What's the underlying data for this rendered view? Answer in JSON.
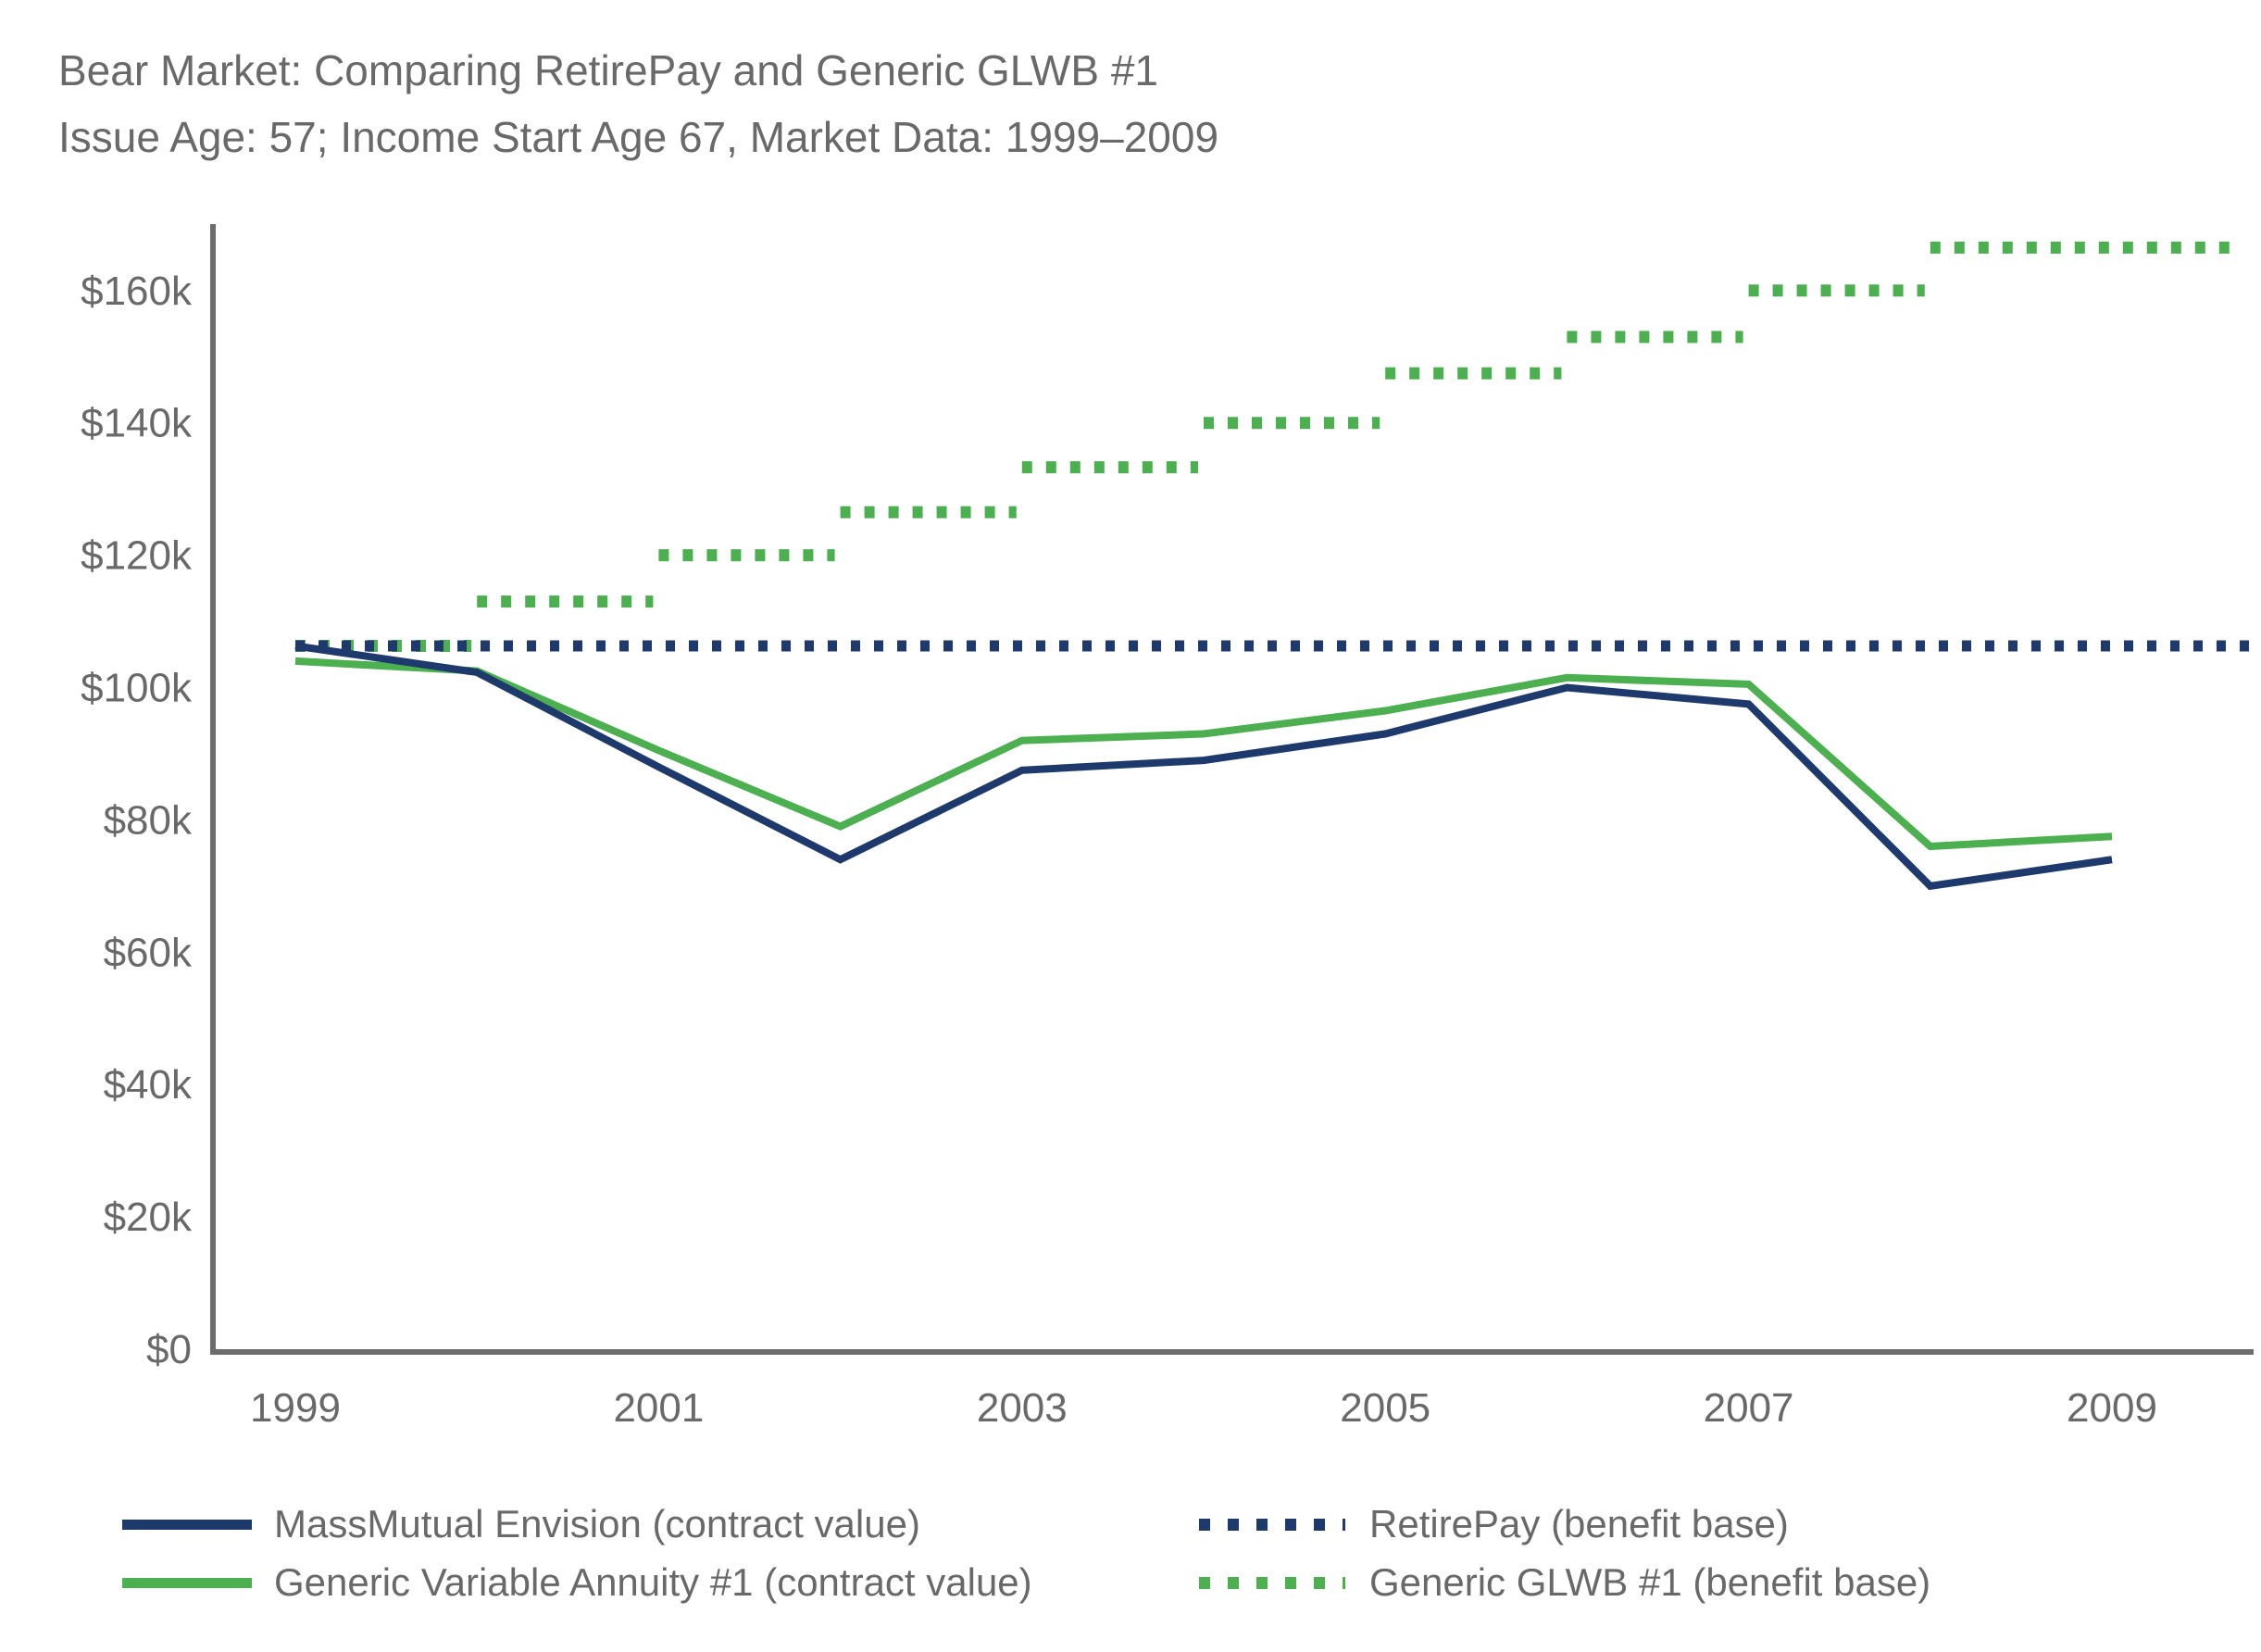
{
  "figure": {
    "title": "Bear Market: Comparing RetirePay and Generic GLWB #1",
    "subtitle": "Issue Age: 57; Income Start Age 67, Market Data: 1999–2009"
  },
  "colors": {
    "navy": "#1e3a6d",
    "green": "#4caf50",
    "axis": "#6d6d6d",
    "text": "#696969"
  },
  "legend": {
    "items": [
      {
        "label": "MassMutual Envision (contract value)",
        "swatch": "navy-solid"
      },
      {
        "label": "Generic Variable Annuity #1 (contract value)",
        "swatch": "green-solid"
      },
      {
        "label": "RetirePay (benefit base)",
        "swatch": "navy-dot"
      },
      {
        "label": "Generic GLWB #1 (benefit base)",
        "swatch": "green-dot"
      }
    ]
  },
  "chart_data": {
    "type": "line",
    "title": "Bear Market: Comparing RetirePay and Generic GLWB #1",
    "subtitle": "Issue Age: 57; Income Start Age 67, Market Data: 1999–2009",
    "xlabel": "",
    "ylabel": "",
    "grid": false,
    "legend_position": "bottom",
    "units": "USD thousands",
    "xlim": [
      1998.55,
      2009.8
    ],
    "ylim": [
      0,
      170
    ],
    "x_ticks": [
      1999,
      2001,
      2003,
      2005,
      2007,
      2009
    ],
    "x_tick_labels": [
      "1999",
      "2001",
      "2003",
      "2005",
      "2007",
      "2009"
    ],
    "y_ticks": [
      {
        "label": "$0",
        "value": 0
      },
      {
        "label": "$20k",
        "value": 20
      },
      {
        "label": "$40k",
        "value": 40
      },
      {
        "label": "$60k",
        "value": 60
      },
      {
        "label": "$80k",
        "value": 80
      },
      {
        "label": "$100k",
        "value": 100
      },
      {
        "label": "$120k",
        "value": 120
      },
      {
        "label": "$140k",
        "value": 140
      },
      {
        "label": "$160k",
        "value": 160
      }
    ],
    "years": [
      1999,
      2000,
      2001,
      2002,
      2003,
      2004,
      2005,
      2006,
      2007,
      2008,
      2009
    ],
    "series": [
      {
        "name": "Generic GLWB #1 (benefit base)",
        "render": "dotted-steps",
        "color": "#4caf50",
        "steps": [
          [
            1999,
            2000,
            106.3
          ],
          [
            2000,
            2001,
            113
          ],
          [
            2001,
            2002,
            120
          ],
          [
            2002,
            2003,
            126.5
          ],
          [
            2003,
            2004,
            133.3
          ],
          [
            2004,
            2005,
            140
          ],
          [
            2005,
            2006,
            147.5
          ],
          [
            2006,
            2007,
            153
          ],
          [
            2007,
            2008,
            160
          ],
          [
            2008,
            2009.75,
            166.5
          ]
        ]
      },
      {
        "name": "RetirePay (benefit base)",
        "render": "dotted-flat",
        "color": "#1e3a6d",
        "value": 106.3,
        "from": 1999,
        "to": 2009.75
      },
      {
        "name": "Generic Variable Annuity #1 (contract value)",
        "render": "solid",
        "color": "#4caf50",
        "values": [
          104,
          102.5,
          90.5,
          79,
          92,
          93,
          96.5,
          101.5,
          100.5,
          76,
          77.5
        ]
      },
      {
        "name": "MassMutual Envision (contract value)",
        "render": "solid",
        "color": "#1e3a6d",
        "values": [
          106.3,
          102.3,
          88,
          74,
          87.5,
          89,
          93,
          100,
          97.5,
          70,
          74
        ]
      }
    ]
  }
}
